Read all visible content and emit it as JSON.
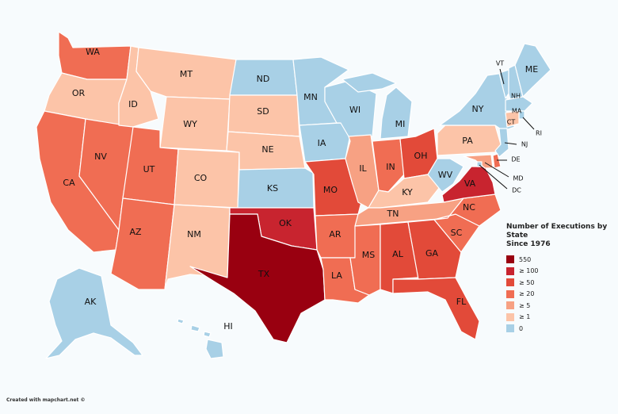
{
  "legend": {
    "title_line1": "Number of Executions by State",
    "title_line2": "Since 1976",
    "items": [
      {
        "label": "550",
        "color": "#990010"
      },
      {
        "label": "≥ 100",
        "color": "#c8242f"
      },
      {
        "label": "≥ 50",
        "color": "#e24a39"
      },
      {
        "label": "≥ 20",
        "color": "#f06d53"
      },
      {
        "label": "≥ 5",
        "color": "#f7a183"
      },
      {
        "label": "≥ 1",
        "color": "#fcc4a8"
      },
      {
        "label": "0",
        "color": "#a8d0e6"
      }
    ]
  },
  "credit": "Created with mapchart.net ©",
  "states": {
    "WA": {
      "label": "WA",
      "color": "#f06d53"
    },
    "OR": {
      "label": "OR",
      "color": "#fcc4a8"
    },
    "CA": {
      "label": "CA",
      "color": "#f06d53"
    },
    "NV": {
      "label": "NV",
      "color": "#f06d53"
    },
    "ID": {
      "label": "ID",
      "color": "#fcc4a8"
    },
    "MT": {
      "label": "MT",
      "color": "#fcc4a8"
    },
    "WY": {
      "label": "WY",
      "color": "#fcc4a8"
    },
    "UT": {
      "label": "UT",
      "color": "#f06d53"
    },
    "AZ": {
      "label": "AZ",
      "color": "#f06d53"
    },
    "CO": {
      "label": "CO",
      "color": "#fcc4a8"
    },
    "NM": {
      "label": "NM",
      "color": "#fcc4a8"
    },
    "ND": {
      "label": "ND",
      "color": "#a8d0e6"
    },
    "SD": {
      "label": "SD",
      "color": "#fcc4a8"
    },
    "NE": {
      "label": "NE",
      "color": "#fcc4a8"
    },
    "KS": {
      "label": "KS",
      "color": "#a8d0e6"
    },
    "OK": {
      "label": "OK",
      "color": "#c8242f"
    },
    "TX": {
      "label": "TX",
      "color": "#990010"
    },
    "MN": {
      "label": "MN",
      "color": "#a8d0e6"
    },
    "IA": {
      "label": "IA",
      "color": "#a8d0e6"
    },
    "MO": {
      "label": "MO",
      "color": "#e24a39"
    },
    "AR": {
      "label": "AR",
      "color": "#f06d53"
    },
    "LA": {
      "label": "LA",
      "color": "#f06d53"
    },
    "WI": {
      "label": "WI",
      "color": "#a8d0e6"
    },
    "IL": {
      "label": "IL",
      "color": "#f7a183"
    },
    "MI": {
      "label": "MI",
      "color": "#a8d0e6"
    },
    "IN": {
      "label": "IN",
      "color": "#f06d53"
    },
    "OH": {
      "label": "OH",
      "color": "#e24a39"
    },
    "KY": {
      "label": "KY",
      "color": "#fcc4a8"
    },
    "TN": {
      "label": "TN",
      "color": "#f7a183"
    },
    "MS": {
      "label": "MS",
      "color": "#f06d53"
    },
    "AL": {
      "label": "AL",
      "color": "#e24a39"
    },
    "GA": {
      "label": "GA",
      "color": "#e24a39"
    },
    "FL": {
      "label": "FL",
      "color": "#e24a39"
    },
    "SC": {
      "label": "SC",
      "color": "#f06d53"
    },
    "NC": {
      "label": "NC",
      "color": "#f06d53"
    },
    "VA": {
      "label": "VA",
      "color": "#c8242f"
    },
    "WV": {
      "label": "WV",
      "color": "#a8d0e6"
    },
    "PA": {
      "label": "PA",
      "color": "#fcc4a8"
    },
    "NY": {
      "label": "NY",
      "color": "#a8d0e6"
    },
    "VT": {
      "label": "VT",
      "color": "#a8d0e6"
    },
    "NH": {
      "label": "NH",
      "color": "#a8d0e6"
    },
    "ME": {
      "label": "ME",
      "color": "#a8d0e6"
    },
    "MA": {
      "label": "MA",
      "color": "#a8d0e6"
    },
    "RI": {
      "label": "RI",
      "color": "#a8d0e6"
    },
    "CT": {
      "label": "CT",
      "color": "#fcc4a8"
    },
    "NJ": {
      "label": "NJ",
      "color": "#a8d0e6"
    },
    "DE": {
      "label": "DE",
      "color": "#f06d53"
    },
    "MD": {
      "label": "MD",
      "color": "#f7a183"
    },
    "DC": {
      "label": "DC",
      "color": "#a8d0e6"
    },
    "AK": {
      "label": "AK",
      "color": "#a8d0e6"
    },
    "HI": {
      "label": "HI",
      "color": "#a8d0e6"
    }
  }
}
